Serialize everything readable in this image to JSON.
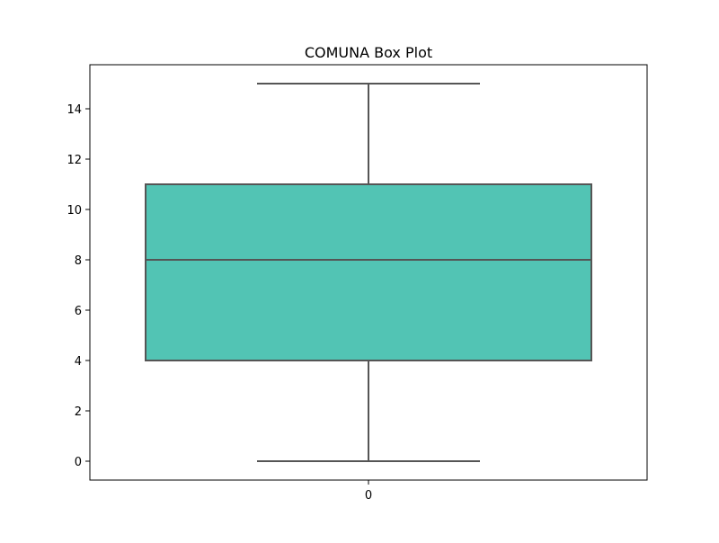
{
  "chart_data": {
    "type": "box",
    "title": "COMUNA Box Plot",
    "xlabel": "",
    "ylabel": "",
    "categories": [
      "0"
    ],
    "boxes": [
      {
        "category": "0",
        "whisker_low": 0,
        "q1": 4,
        "median": 8,
        "q3": 11,
        "whisker_high": 15
      }
    ],
    "ylim": [
      -0.75,
      15.75
    ],
    "yticks": [
      0,
      2,
      4,
      6,
      8,
      10,
      12,
      14
    ],
    "grid": false,
    "legend": "none",
    "colors": {
      "box_fill": "#52c4b4",
      "line": "#555555",
      "axis": "#000000"
    }
  }
}
